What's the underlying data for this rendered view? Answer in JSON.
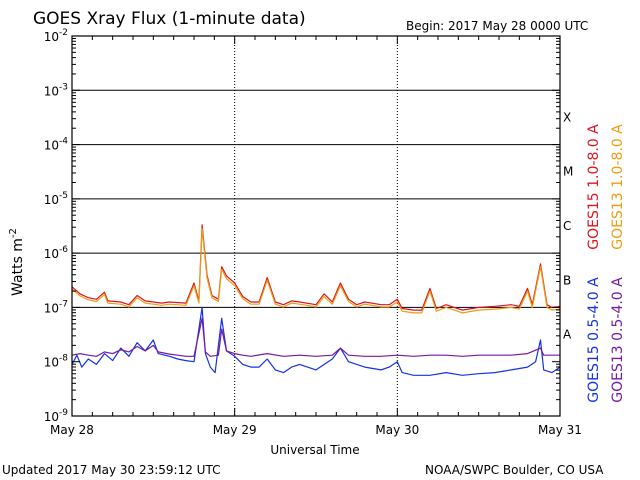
{
  "header": {
    "title": "GOES Xray Flux (1-minute data)",
    "begin": "Begin:  2017 May 28 0000 UTC"
  },
  "footer": {
    "updated": "Updated 2017 May 30 23:59:12 UTC",
    "source": "NOAA/SWPC Boulder, CO USA"
  },
  "chart_data": {
    "type": "line",
    "title": "GOES Xray Flux (1-minute data)",
    "xlabel": "Universal Time",
    "ylabel": "Watts m",
    "ylabel_sup": "-2",
    "y_scale": "log",
    "ylim_exp": [
      -9,
      -2
    ],
    "xlim_days": [
      0,
      3
    ],
    "grid": "horizontal lines at each decade from 1e-7 to 1e-3; vertical dotted day separators",
    "x_ticks": [
      {
        "pos": 0,
        "label": "May 28"
      },
      {
        "pos": 1,
        "label": "May 29"
      },
      {
        "pos": 2,
        "label": "May 30"
      },
      {
        "pos": 3,
        "label": "May 31"
      }
    ],
    "y_ticks": [
      {
        "exp": -9,
        "base": "10",
        "sup": "-9"
      },
      {
        "exp": -8,
        "base": "10",
        "sup": "-8"
      },
      {
        "exp": -7,
        "base": "10",
        "sup": "-7"
      },
      {
        "exp": -6,
        "base": "10",
        "sup": "-6"
      },
      {
        "exp": -5,
        "base": "10",
        "sup": "-5"
      },
      {
        "exp": -4,
        "base": "10",
        "sup": "-4"
      },
      {
        "exp": -3,
        "base": "10",
        "sup": "-3"
      },
      {
        "exp": -2,
        "base": "10",
        "sup": "-2"
      }
    ],
    "flare_classes": [
      {
        "label": "A",
        "exp": -7.5
      },
      {
        "label": "B",
        "exp": -6.5
      },
      {
        "label": "C",
        "exp": -5.5
      },
      {
        "label": "M",
        "exp": -4.5
      },
      {
        "label": "X",
        "exp": -3.5
      }
    ],
    "legend_placement": "right side, vertical",
    "series": [
      {
        "name": "GOES15 1.0-8.0 A",
        "color": "#e0141e",
        "points": [
          [
            0.0,
            -6.62
          ],
          [
            0.05,
            -6.75
          ],
          [
            0.1,
            -6.82
          ],
          [
            0.15,
            -6.85
          ],
          [
            0.2,
            -6.72
          ],
          [
            0.22,
            -6.88
          ],
          [
            0.3,
            -6.9
          ],
          [
            0.35,
            -6.95
          ],
          [
            0.4,
            -6.78
          ],
          [
            0.45,
            -6.88
          ],
          [
            0.5,
            -6.9
          ],
          [
            0.55,
            -6.92
          ],
          [
            0.6,
            -6.9
          ],
          [
            0.7,
            -6.92
          ],
          [
            0.75,
            -6.55
          ],
          [
            0.78,
            -6.88
          ],
          [
            0.8,
            -5.48
          ],
          [
            0.83,
            -6.4
          ],
          [
            0.86,
            -6.78
          ],
          [
            0.9,
            -6.85
          ],
          [
            0.92,
            -6.25
          ],
          [
            0.95,
            -6.42
          ],
          [
            1.0,
            -6.55
          ],
          [
            1.05,
            -6.8
          ],
          [
            1.1,
            -6.9
          ],
          [
            1.15,
            -6.9
          ],
          [
            1.2,
            -6.45
          ],
          [
            1.25,
            -6.9
          ],
          [
            1.3,
            -6.95
          ],
          [
            1.35,
            -6.88
          ],
          [
            1.4,
            -6.9
          ],
          [
            1.5,
            -6.95
          ],
          [
            1.55,
            -6.75
          ],
          [
            1.6,
            -6.9
          ],
          [
            1.65,
            -6.55
          ],
          [
            1.7,
            -6.85
          ],
          [
            1.75,
            -6.95
          ],
          [
            1.8,
            -6.9
          ],
          [
            1.9,
            -6.95
          ],
          [
            1.95,
            -6.95
          ],
          [
            2.0,
            -6.85
          ],
          [
            2.03,
            -7.02
          ],
          [
            2.1,
            -7.05
          ],
          [
            2.15,
            -7.05
          ],
          [
            2.2,
            -6.65
          ],
          [
            2.24,
            -7.02
          ],
          [
            2.3,
            -6.95
          ],
          [
            2.35,
            -7.0
          ],
          [
            2.4,
            -7.05
          ],
          [
            2.5,
            -7.0
          ],
          [
            2.6,
            -6.98
          ],
          [
            2.7,
            -6.95
          ],
          [
            2.75,
            -6.98
          ],
          [
            2.8,
            -6.65
          ],
          [
            2.83,
            -6.95
          ],
          [
            2.88,
            -6.2
          ],
          [
            2.92,
            -6.95
          ],
          [
            2.95,
            -7.0
          ],
          [
            3.0,
            -6.98
          ]
        ]
      },
      {
        "name": "GOES13 1.0-8.0 A",
        "color": "#ee9d12",
        "points": [
          [
            0.0,
            -6.66
          ],
          [
            0.05,
            -6.79
          ],
          [
            0.1,
            -6.86
          ],
          [
            0.15,
            -6.89
          ],
          [
            0.2,
            -6.76
          ],
          [
            0.22,
            -6.92
          ],
          [
            0.3,
            -6.94
          ],
          [
            0.35,
            -6.99
          ],
          [
            0.4,
            -6.82
          ],
          [
            0.45,
            -6.92
          ],
          [
            0.5,
            -6.94
          ],
          [
            0.55,
            -6.96
          ],
          [
            0.6,
            -6.94
          ],
          [
            0.7,
            -6.96
          ],
          [
            0.75,
            -6.6
          ],
          [
            0.78,
            -6.92
          ],
          [
            0.8,
            -5.55
          ],
          [
            0.83,
            -6.45
          ],
          [
            0.86,
            -6.82
          ],
          [
            0.9,
            -6.89
          ],
          [
            0.92,
            -6.3
          ],
          [
            0.95,
            -6.47
          ],
          [
            1.0,
            -6.6
          ],
          [
            1.05,
            -6.84
          ],
          [
            1.1,
            -6.94
          ],
          [
            1.15,
            -6.94
          ],
          [
            1.2,
            -6.5
          ],
          [
            1.25,
            -6.94
          ],
          [
            1.3,
            -6.99
          ],
          [
            1.35,
            -6.92
          ],
          [
            1.4,
            -6.94
          ],
          [
            1.5,
            -6.99
          ],
          [
            1.55,
            -6.8
          ],
          [
            1.6,
            -6.94
          ],
          [
            1.65,
            -6.6
          ],
          [
            1.7,
            -6.89
          ],
          [
            1.75,
            -6.99
          ],
          [
            1.8,
            -6.94
          ],
          [
            1.9,
            -6.99
          ],
          [
            1.95,
            -6.99
          ],
          [
            2.0,
            -6.9
          ],
          [
            2.03,
            -7.07
          ],
          [
            2.1,
            -7.1
          ],
          [
            2.15,
            -7.1
          ],
          [
            2.2,
            -6.7
          ],
          [
            2.24,
            -7.07
          ],
          [
            2.3,
            -7.0
          ],
          [
            2.35,
            -7.05
          ],
          [
            2.4,
            -7.1
          ],
          [
            2.5,
            -7.05
          ],
          [
            2.6,
            -7.03
          ],
          [
            2.7,
            -7.0
          ],
          [
            2.75,
            -7.03
          ],
          [
            2.8,
            -6.7
          ],
          [
            2.83,
            -7.0
          ],
          [
            2.88,
            -6.25
          ],
          [
            2.92,
            -7.0
          ],
          [
            2.95,
            -7.05
          ],
          [
            3.0,
            -7.03
          ]
        ]
      },
      {
        "name": "GOES15 0.5-4.0 A",
        "color": "#1432e6",
        "points": [
          [
            0.0,
            -8.05
          ],
          [
            0.03,
            -7.88
          ],
          [
            0.06,
            -8.1
          ],
          [
            0.1,
            -7.95
          ],
          [
            0.15,
            -8.05
          ],
          [
            0.2,
            -7.85
          ],
          [
            0.25,
            -7.98
          ],
          [
            0.3,
            -7.75
          ],
          [
            0.35,
            -7.9
          ],
          [
            0.4,
            -7.65
          ],
          [
            0.45,
            -7.8
          ],
          [
            0.5,
            -7.6
          ],
          [
            0.53,
            -7.85
          ],
          [
            0.6,
            -7.9
          ],
          [
            0.65,
            -7.95
          ],
          [
            0.7,
            -7.98
          ],
          [
            0.75,
            -8.0
          ],
          [
            0.8,
            -7.0
          ],
          [
            0.82,
            -7.85
          ],
          [
            0.85,
            -8.1
          ],
          [
            0.88,
            -8.2
          ],
          [
            0.92,
            -7.2
          ],
          [
            0.95,
            -7.8
          ],
          [
            1.0,
            -7.9
          ],
          [
            1.05,
            -8.05
          ],
          [
            1.1,
            -8.1
          ],
          [
            1.15,
            -8.1
          ],
          [
            1.2,
            -7.95
          ],
          [
            1.25,
            -8.15
          ],
          [
            1.3,
            -8.2
          ],
          [
            1.35,
            -8.1
          ],
          [
            1.4,
            -8.05
          ],
          [
            1.5,
            -8.15
          ],
          [
            1.6,
            -7.95
          ],
          [
            1.65,
            -7.75
          ],
          [
            1.7,
            -8.0
          ],
          [
            1.8,
            -8.1
          ],
          [
            1.9,
            -8.15
          ],
          [
            1.95,
            -8.1
          ],
          [
            2.0,
            -8.0
          ],
          [
            2.03,
            -8.2
          ],
          [
            2.1,
            -8.25
          ],
          [
            2.2,
            -8.25
          ],
          [
            2.3,
            -8.2
          ],
          [
            2.4,
            -8.25
          ],
          [
            2.5,
            -8.22
          ],
          [
            2.6,
            -8.2
          ],
          [
            2.7,
            -8.15
          ],
          [
            2.8,
            -8.1
          ],
          [
            2.85,
            -8.0
          ],
          [
            2.88,
            -7.6
          ],
          [
            2.9,
            -8.15
          ],
          [
            2.95,
            -8.2
          ],
          [
            3.0,
            -8.1
          ]
        ]
      },
      {
        "name": "GOES13 0.5-4.0 A",
        "color": "#781aa0",
        "points": [
          [
            0.0,
            -7.88
          ],
          [
            0.05,
            -7.85
          ],
          [
            0.1,
            -7.88
          ],
          [
            0.15,
            -7.9
          ],
          [
            0.2,
            -7.82
          ],
          [
            0.25,
            -7.85
          ],
          [
            0.3,
            -7.78
          ],
          [
            0.35,
            -7.82
          ],
          [
            0.4,
            -7.72
          ],
          [
            0.45,
            -7.8
          ],
          [
            0.5,
            -7.7
          ],
          [
            0.53,
            -7.82
          ],
          [
            0.6,
            -7.86
          ],
          [
            0.65,
            -7.88
          ],
          [
            0.7,
            -7.9
          ],
          [
            0.75,
            -7.9
          ],
          [
            0.8,
            -7.2
          ],
          [
            0.82,
            -7.82
          ],
          [
            0.85,
            -7.9
          ],
          [
            0.9,
            -7.88
          ],
          [
            0.92,
            -7.4
          ],
          [
            0.95,
            -7.8
          ],
          [
            1.0,
            -7.85
          ],
          [
            1.05,
            -7.88
          ],
          [
            1.1,
            -7.9
          ],
          [
            1.2,
            -7.85
          ],
          [
            1.3,
            -7.9
          ],
          [
            1.4,
            -7.88
          ],
          [
            1.5,
            -7.9
          ],
          [
            1.6,
            -7.88
          ],
          [
            1.65,
            -7.75
          ],
          [
            1.7,
            -7.88
          ],
          [
            1.8,
            -7.9
          ],
          [
            1.9,
            -7.9
          ],
          [
            2.0,
            -7.88
          ],
          [
            2.1,
            -7.9
          ],
          [
            2.2,
            -7.88
          ],
          [
            2.3,
            -7.88
          ],
          [
            2.4,
            -7.9
          ],
          [
            2.5,
            -7.88
          ],
          [
            2.6,
            -7.88
          ],
          [
            2.7,
            -7.88
          ],
          [
            2.8,
            -7.85
          ],
          [
            2.88,
            -7.75
          ],
          [
            2.9,
            -7.88
          ],
          [
            3.0,
            -7.88
          ]
        ]
      }
    ]
  }
}
